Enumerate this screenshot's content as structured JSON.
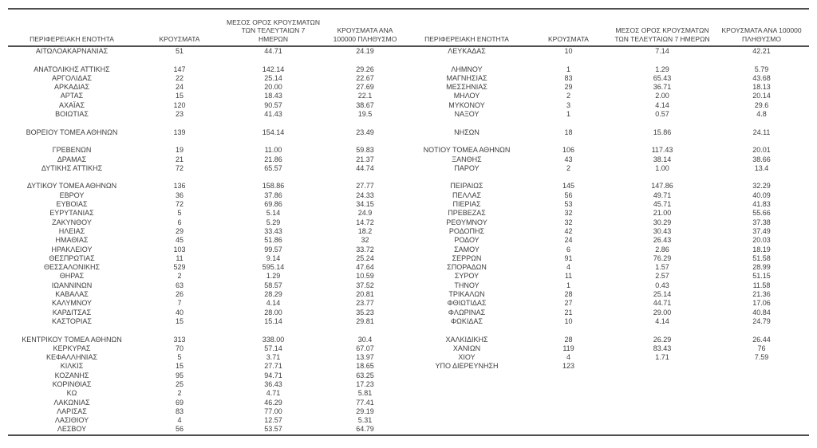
{
  "page": {
    "background_color": "#ffffff",
    "text_color": "#3d3d3d",
    "rule_color": "#4f4f4f"
  },
  "table": {
    "headers": [
      "ΠΕΡΙΦΕΡΕΙΑΚΗ ΕΝΟΤΗΤΑ",
      "ΚΡΟΥΣΜΑΤΑ",
      "ΜΕΣΟΣ ΟΡΟΣ ΚΡΟΥΣΜΑΤΩΝ ΤΩΝ ΤΕΛΕΥΤΑΙΩΝ 7 ΗΜΕΡΩΝ",
      "ΚΡΟΥΣΜΑΤΑ ΑΝΑ 100000 ΠΛΗΘΥΣΜΟ"
    ],
    "rows": [
      [
        "ΑΙΤΩΛΟΑΚΑΡΝΑΝΙΑΣ",
        "51",
        "44.71",
        "24.19",
        "ΛΕΥΚΑΔΑΣ",
        "10",
        "7.14",
        "42.21"
      ],
      null,
      [
        "ΑΝΑΤΟΛΙΚΗΣ ΑΤΤΙΚΗΣ",
        "147",
        "142.14",
        "29.26",
        "ΛΗΜΝΟΥ",
        "1",
        "1.29",
        "5.79"
      ],
      [
        "ΑΡΓΟΛΙΔΑΣ",
        "22",
        "25.14",
        "22.67",
        "ΜΑΓΝΗΣΙΑΣ",
        "83",
        "65.43",
        "43.68"
      ],
      [
        "ΑΡΚΑΔΙΑΣ",
        "24",
        "20.00",
        "27.69",
        "ΜΕΣΣΗΝΙΑΣ",
        "29",
        "36.71",
        "18.13"
      ],
      [
        "ΑΡΤΑΣ",
        "15",
        "18.43",
        "22.1",
        "ΜΗΛΟΥ",
        "2",
        "2.00",
        "20.14"
      ],
      [
        "ΑΧΑΪΑΣ",
        "120",
        "90.57",
        "38.67",
        "ΜΥΚΟΝΟΥ",
        "3",
        "4.14",
        "29.6"
      ],
      [
        "ΒΟΙΩΤΙΑΣ",
        "23",
        "41.43",
        "19.5",
        "ΝΑΞΟΥ",
        "1",
        "0.57",
        "4.8"
      ],
      null,
      [
        "ΒΟΡΕΙΟΥ ΤΟΜΕΑ ΑΘΗΝΩΝ",
        "139",
        "154.14",
        "23.49",
        "ΝΗΣΩΝ",
        "18",
        "15.86",
        "24.11"
      ],
      null,
      [
        "ΓΡΕΒΕΝΩΝ",
        "19",
        "11.00",
        "59.83",
        "ΝΟΤΙΟΥ ΤΟΜΕΑ ΑΘΗΝΩΝ",
        "106",
        "117.43",
        "20.01"
      ],
      [
        "ΔΡΑΜΑΣ",
        "21",
        "21.86",
        "21.37",
        "ΞΑΝΘΗΣ",
        "43",
        "38.14",
        "38.66"
      ],
      [
        "ΔΥΤΙΚΗΣ ΑΤΤΙΚΗΣ",
        "72",
        "65.57",
        "44.74",
        "ΠΑΡΟΥ",
        "2",
        "1.00",
        "13.4"
      ],
      null,
      [
        "ΔΥΤΙΚΟΥ ΤΟΜΕΑ ΑΘΗΝΩΝ",
        "136",
        "158.86",
        "27.77",
        "ΠΕΙΡΑΙΩΣ",
        "145",
        "147.86",
        "32.29"
      ],
      [
        "ΕΒΡΟΥ",
        "36",
        "37.86",
        "24.33",
        "ΠΕΛΛΑΣ",
        "56",
        "49.71",
        "40.09"
      ],
      [
        "ΕΥΒΟΙΑΣ",
        "72",
        "69.86",
        "34.15",
        "ΠΙΕΡΙΑΣ",
        "53",
        "45.71",
        "41.83"
      ],
      [
        "ΕΥΡΥΤΑΝΙΑΣ",
        "5",
        "5.14",
        "24.9",
        "ΠΡΕΒΕΖΑΣ",
        "32",
        "21.00",
        "55.66"
      ],
      [
        "ΖΑΚΥΝΘΟΥ",
        "6",
        "5.29",
        "14.72",
        "ΡΕΘΥΜΝΟΥ",
        "32",
        "30.29",
        "37.38"
      ],
      [
        "ΗΛΕΙΑΣ",
        "29",
        "33.43",
        "18.2",
        "ΡΟΔΟΠΗΣ",
        "42",
        "30.43",
        "37.49"
      ],
      [
        "ΗΜΑΘΙΑΣ",
        "45",
        "51.86",
        "32",
        "ΡΟΔΟΥ",
        "24",
        "26.43",
        "20.03"
      ],
      [
        "ΗΡΑΚΛΕΙΟΥ",
        "103",
        "99.57",
        "33.72",
        "ΣΑΜΟΥ",
        "6",
        "2.86",
        "18.19"
      ],
      [
        "ΘΕΣΠΡΩΤΙΑΣ",
        "11",
        "9.14",
        "25.24",
        "ΣΕΡΡΩΝ",
        "91",
        "76.29",
        "51.58"
      ],
      [
        "ΘΕΣΣΑΛΟΝΙΚΗΣ",
        "529",
        "595.14",
        "47.64",
        "ΣΠΟΡΑΔΩΝ",
        "4",
        "1.57",
        "28.99"
      ],
      [
        "ΘΗΡΑΣ",
        "2",
        "1.29",
        "10.59",
        "ΣΥΡΟΥ",
        "11",
        "2.57",
        "51.15"
      ],
      [
        "ΙΩΑΝΝΙΝΩΝ",
        "63",
        "58.57",
        "37.52",
        "ΤΗΝΟΥ",
        "1",
        "0.43",
        "11.58"
      ],
      [
        "ΚΑΒΑΛΑΣ",
        "26",
        "28.29",
        "20.81",
        "ΤΡΙΚΑΛΩΝ",
        "28",
        "25.14",
        "21.36"
      ],
      [
        "ΚΑΛΥΜΝΟΥ",
        "7",
        "4.14",
        "23.77",
        "ΦΘΙΩΤΙΔΑΣ",
        "27",
        "44.71",
        "17.06"
      ],
      [
        "ΚΑΡΔΙΤΣΑΣ",
        "40",
        "28.00",
        "35.23",
        "ΦΛΩΡΙΝΑΣ",
        "21",
        "29.00",
        "40.84"
      ],
      [
        "ΚΑΣΤΟΡΙΑΣ",
        "15",
        "15.14",
        "29.81",
        "ΦΩΚΙΔΑΣ",
        "10",
        "4.14",
        "24.79"
      ],
      null,
      [
        "ΚΕΝΤΡΙΚΟΥ ΤΟΜΕΑ ΑΘΗΝΩΝ",
        "313",
        "338.00",
        "30.4",
        "ΧΑΛΚΙΔΙΚΗΣ",
        "28",
        "26.29",
        "26.44"
      ],
      [
        "ΚΕΡΚΥΡΑΣ",
        "70",
        "57.14",
        "67.07",
        "ΧΑΝΙΩΝ",
        "119",
        "83.43",
        "76"
      ],
      [
        "ΚΕΦΑΛΛΗΝΙΑΣ",
        "5",
        "3.71",
        "13.97",
        "ΧΙΟΥ",
        "4",
        "1.71",
        "7.59"
      ],
      [
        "ΚΙΛΚΙΣ",
        "15",
        "27.71",
        "18.65",
        "ΥΠΟ ΔΙΕΡΕΥΝΗΣΗ",
        "123",
        "",
        ""
      ],
      [
        "ΚΟΖΑΝΗΣ",
        "95",
        "94.71",
        "63.25",
        "",
        "",
        "",
        ""
      ],
      [
        "ΚΟΡΙΝΘΙΑΣ",
        "25",
        "36.43",
        "17.23",
        "",
        "",
        "",
        ""
      ],
      [
        "ΚΩ",
        "2",
        "4.71",
        "5.81",
        "",
        "",
        "",
        ""
      ],
      [
        "ΛΑΚΩΝΙΑΣ",
        "69",
        "46.29",
        "77.41",
        "",
        "",
        "",
        ""
      ],
      [
        "ΛΑΡΙΣΑΣ",
        "83",
        "77.00",
        "29.19",
        "",
        "",
        "",
        ""
      ],
      [
        "ΛΑΣΙΘΙΟΥ",
        "4",
        "12.57",
        "5.31",
        "",
        "",
        "",
        ""
      ],
      [
        "ΛΕΣΒΟΥ",
        "56",
        "53.57",
        "64.79",
        "",
        "",
        "",
        ""
      ]
    ]
  }
}
